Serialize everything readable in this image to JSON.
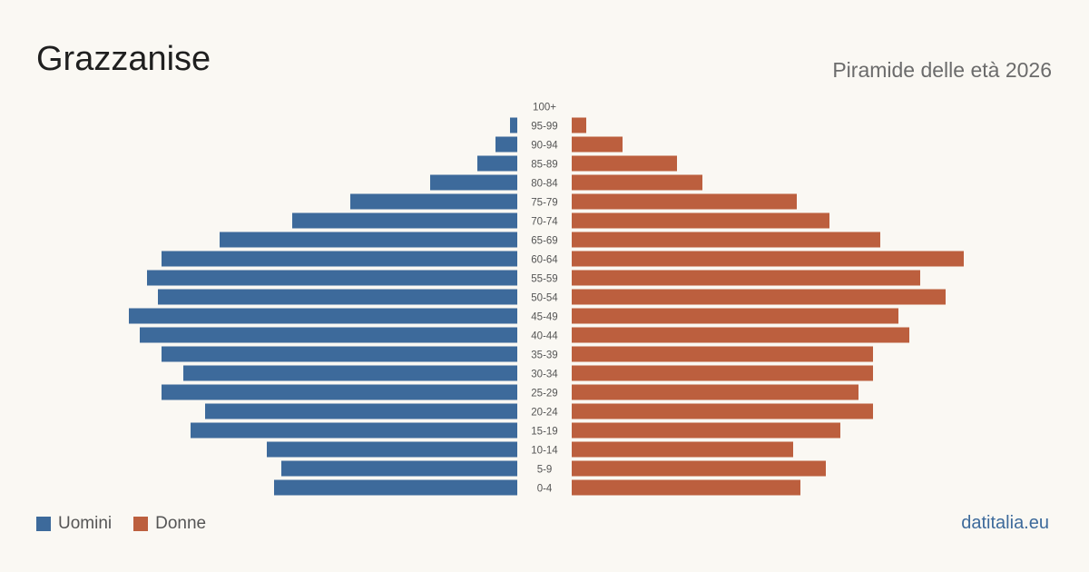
{
  "header": {
    "title": "Grazzanise",
    "subtitle": "Piramide delle età 2026"
  },
  "legend": {
    "men_label": "Uomini",
    "women_label": "Donne"
  },
  "footer": {
    "source": "datitalia.eu"
  },
  "colors": {
    "men": "#3d6a9b",
    "women": "#bc5f3e"
  },
  "chart_data": {
    "type": "bar",
    "orientation": "horizontal-pyramid",
    "categories": [
      "100+",
      "95-99",
      "90-94",
      "85-89",
      "80-84",
      "75-79",
      "70-74",
      "65-69",
      "60-64",
      "55-59",
      "50-54",
      "45-49",
      "40-44",
      "35-39",
      "30-34",
      "25-29",
      "20-24",
      "15-19",
      "10-14",
      "5-9",
      "0-4"
    ],
    "series": [
      {
        "name": "Uomini",
        "values": [
          0,
          2,
          6,
          11,
          24,
          46,
          62,
          82,
          98,
          102,
          99,
          107,
          104,
          98,
          92,
          98,
          86,
          90,
          69,
          65,
          67
        ]
      },
      {
        "name": "Donne",
        "values": [
          0,
          4,
          14,
          29,
          36,
          62,
          71,
          85,
          108,
          96,
          103,
          90,
          93,
          83,
          83,
          79,
          83,
          74,
          61,
          70,
          63
        ]
      }
    ],
    "xlim": [
      0,
      120
    ],
    "grid": false,
    "legend_position": "bottom-left"
  }
}
